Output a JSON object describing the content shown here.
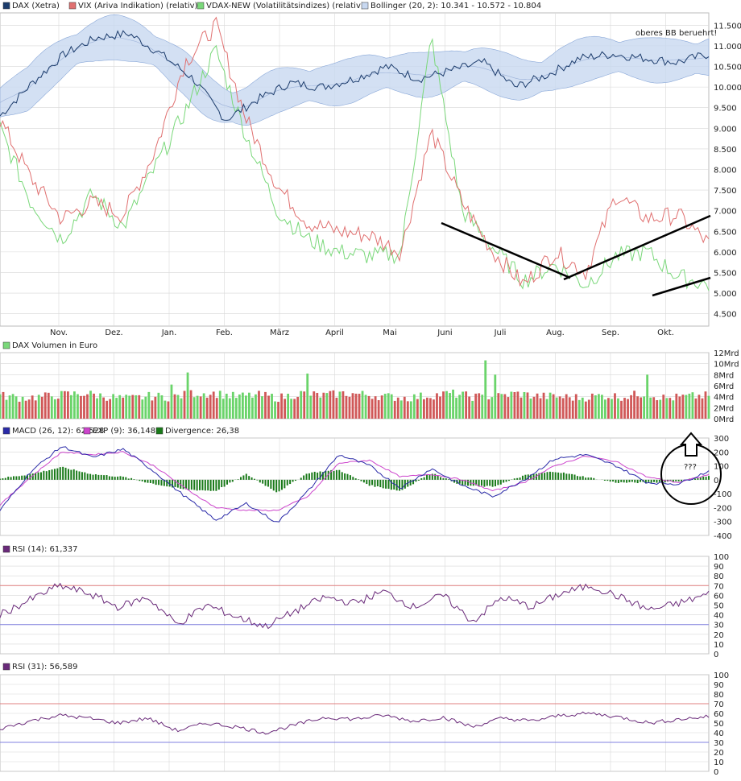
{
  "colors": {
    "dax": "#1c3c6c",
    "vix": "#e07070",
    "vdax": "#7ad87a",
    "bollinger": "#c8d8f0",
    "volume_up": "#6ad46a",
    "volume_down": "#d05858",
    "macd": "#2a2aa8",
    "exp": "#cc44cc",
    "divergence": "#1a7a1a",
    "rsi": "#6a2a7a",
    "rsi_line_70": "#e08080",
    "rsi_line_30": "#8080e0",
    "grid": "#d8d8d8"
  },
  "panels": {
    "price": {
      "legend": [
        {
          "label": "DAX (Xetra)",
          "swatch": "dax"
        },
        {
          "label": "VIX (Ariva Indikation) (relativ)",
          "swatch": "vix"
        },
        {
          "label": "VDAX-NEW (Volatilitätsindizes) (relativ)",
          "swatch": "vdax"
        },
        {
          "label": "Bollinger (20, 2): 10.341 - 10.572 - 10.804",
          "swatch": "bollinger"
        }
      ],
      "annotation": "oberes BB beruehrt!"
    },
    "volume": {
      "legend": [
        {
          "label": "DAX Volumen in Euro",
          "swatch": "volume_up"
        }
      ]
    },
    "macd": {
      "legend": [
        {
          "label": "MACD (26, 12): 62,528",
          "swatch": "macd"
        },
        {
          "label": "EXP (9): 36,148",
          "swatch": "exp"
        },
        {
          "label": "Divergence: 26,38",
          "swatch": "divergence"
        }
      ],
      "annotation": "???"
    },
    "rsi14": {
      "legend": [
        {
          "label": "RSI (14): 61,337",
          "swatch": "rsi"
        }
      ]
    },
    "rsi31": {
      "legend": [
        {
          "label": "RSI (31): 56,589",
          "swatch": "rsi"
        }
      ]
    }
  },
  "chart_data": [
    {
      "type": "line",
      "title": "",
      "x_ticks": [
        "Nov.",
        "Dez.",
        "Jan.",
        "Feb.",
        "März",
        "April",
        "Mai",
        "Juni",
        "Juli",
        "Aug.",
        "Sep.",
        "Okt."
      ],
      "y_ticks": [
        "4.500",
        "5.000",
        "5.500",
        "6.000",
        "6.500",
        "7.000",
        "7.500",
        "8.000",
        "8.500",
        "9.000",
        "9.500",
        "10.000",
        "10.500",
        "11.000",
        "11.500"
      ],
      "ylim": [
        4200,
        11800
      ],
      "series": [
        {
          "name": "DAX (Xetra)",
          "values": [
            9300,
            10100,
            10800,
            11200,
            11300,
            10800,
            10200,
            9200,
            9700,
            10100,
            10000,
            10200,
            10500,
            10200,
            10400,
            10600,
            10000,
            10300,
            10700,
            10800,
            10700,
            10600,
            10800
          ]
        },
        {
          "name": "VIX (Ariva Indikation) (relativ)",
          "values": [
            9200,
            7800,
            6800,
            7200,
            6900,
            8400,
            10600,
            11500,
            9200,
            7600,
            6700,
            6500,
            6400,
            6000,
            8900,
            7200,
            6000,
            5200,
            6000,
            5500,
            7400,
            6800,
            6900,
            6200
          ]
        },
        {
          "name": "VDAX-NEW (Volatilitätsindizes) (relativ)",
          "values": [
            9000,
            7200,
            6300,
            7400,
            6600,
            8000,
            9400,
            10900,
            8800,
            7000,
            6300,
            6000,
            5900,
            5950,
            11200,
            7000,
            6100,
            5300,
            5700,
            5200,
            5900,
            6000,
            5400,
            5200
          ]
        },
        {
          "name": "Bollinger (20, 2)",
          "values": [
            10341,
            10572,
            10804
          ]
        }
      ]
    },
    {
      "type": "bar",
      "title": "",
      "y_ticks": [
        "0Mrd",
        "2Mrd",
        "4Mrd",
        "6Mrd",
        "8Mrd",
        "10Mrd",
        "12Mrd"
      ],
      "ylim": [
        0,
        12
      ],
      "series": [
        {
          "name": "DAX Volumen in Euro",
          "values": [
            4.2,
            3.8,
            4.0,
            4.4,
            5.0,
            4.0,
            3.6,
            4.1,
            3.9,
            4.6,
            8.4,
            4.0,
            4.3,
            3.8,
            5.0,
            4.2,
            8.2,
            4.4,
            4.0,
            3.8,
            4.2,
            4.6,
            4.0,
            3.9,
            10.6,
            4.1,
            4.0,
            3.8,
            4.2,
            4.0,
            8.0,
            3.7,
            4.0,
            4.2
          ]
        }
      ]
    },
    {
      "type": "line",
      "title": "",
      "y_ticks": [
        "-400",
        "-300",
        "-200",
        "-100",
        "0",
        "100",
        "200",
        "300"
      ],
      "ylim": [
        -400,
        300
      ],
      "series": [
        {
          "name": "MACD (26, 12)",
          "values": [
            -220,
            60,
            240,
            160,
            220,
            60,
            -120,
            -290,
            -170,
            -310,
            -80,
            180,
            100,
            -60,
            80,
            -40,
            -120,
            0,
            150,
            180,
            100,
            -20,
            -30,
            62.528
          ]
        },
        {
          "name": "EXP (9)",
          "values": [
            -180,
            20,
            200,
            180,
            200,
            100,
            -60,
            -200,
            -220,
            -220,
            -120,
            120,
            140,
            20,
            40,
            0,
            -80,
            -20,
            100,
            170,
            130,
            20,
            -20,
            36.148
          ]
        },
        {
          "name": "Divergence",
          "values": [
            10,
            40,
            90,
            40,
            20,
            -30,
            -70,
            -80,
            40,
            -90,
            50,
            70,
            -40,
            -80,
            50,
            -40,
            -50,
            30,
            60,
            20,
            -20,
            -20,
            -10,
            26.38
          ]
        }
      ]
    },
    {
      "type": "line",
      "title": "",
      "y_ticks": [
        "0",
        "10",
        "20",
        "30",
        "40",
        "50",
        "60",
        "70",
        "80",
        "90",
        "100"
      ],
      "ylim": [
        0,
        100
      ],
      "series": [
        {
          "name": "RSI (14)",
          "values": [
            40,
            55,
            70,
            62,
            48,
            58,
            30,
            50,
            38,
            28,
            44,
            58,
            52,
            64,
            48,
            60,
            33,
            58,
            48,
            62,
            70,
            58,
            45,
            52,
            61.337
          ]
        }
      ]
    },
    {
      "type": "line",
      "title": "",
      "y_ticks": [
        "0",
        "10",
        "20",
        "30",
        "40",
        "50",
        "60",
        "70",
        "80",
        "90",
        "100"
      ],
      "ylim": [
        0,
        100
      ],
      "series": [
        {
          "name": "RSI (31)",
          "values": [
            44,
            52,
            58,
            55,
            50,
            55,
            42,
            50,
            46,
            40,
            48,
            56,
            54,
            58,
            52,
            56,
            46,
            55,
            52,
            58,
            60,
            56,
            50,
            54,
            56.589
          ]
        }
      ]
    }
  ]
}
